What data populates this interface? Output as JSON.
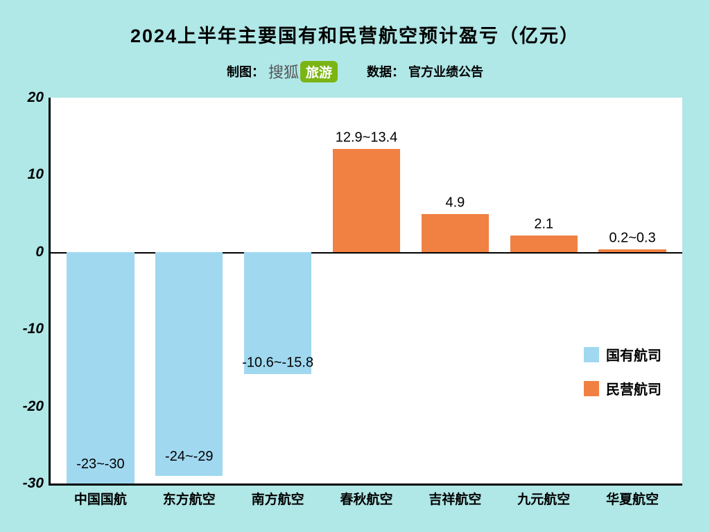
{
  "title": "2024上半年主要国有和民营航空预计盈亏（亿元）",
  "title_fontsize": 27,
  "title_color": "#000000",
  "subtitle": {
    "credit_label": "制图：",
    "brand_text": "搜狐",
    "brand_badge": "旅游",
    "data_label": "数据：",
    "data_source": "官方业绩公告",
    "fontsize": 18,
    "brand_text_color": "#555555",
    "brand_text_fontsize": 22,
    "badge_bg": "#7bb514",
    "badge_color": "#ffffff"
  },
  "chart": {
    "type": "bar",
    "background_color": "#b0e7e7",
    "plot_bg": "#ffffff",
    "axis_color": "#000000",
    "zero_line_color": "#000000",
    "ylim": [
      -30,
      20
    ],
    "yticks": [
      -30,
      -20,
      -10,
      0,
      10,
      20
    ],
    "ytick_fontsize": 21,
    "xtick_fontsize": 19,
    "value_label_fontsize": 20,
    "value_label_color": "#000000",
    "bar_width_ratio": 0.76,
    "categories": [
      "中国国航",
      "东方航空",
      "南方航空",
      "春秋航空",
      "吉祥航空",
      "九元航空",
      "华夏航空"
    ],
    "values": [
      -30,
      -29,
      -15.8,
      13.4,
      4.9,
      2.1,
      0.3
    ],
    "value_labels": [
      "-23~-30",
      "-24~-29",
      "-10.6~-15.8",
      "12.9~13.4",
      "4.9",
      "2.1",
      "0.2~0.3"
    ],
    "value_label_positions": [
      "inside-bottom",
      "inside-bottom",
      "above-bar",
      "above",
      "above",
      "above",
      "above"
    ],
    "bar_colors": [
      "#a0d8ef",
      "#a0d8ef",
      "#a0d8ef",
      "#f08142",
      "#f08142",
      "#f08142",
      "#f08142"
    ],
    "legend": {
      "position_right": 30,
      "position_top_ratio": 0.64,
      "items": [
        {
          "label": "国有航司",
          "color": "#a0d8ef"
        },
        {
          "label": "民营航司",
          "color": "#f08142"
        }
      ],
      "fontsize": 20
    }
  }
}
